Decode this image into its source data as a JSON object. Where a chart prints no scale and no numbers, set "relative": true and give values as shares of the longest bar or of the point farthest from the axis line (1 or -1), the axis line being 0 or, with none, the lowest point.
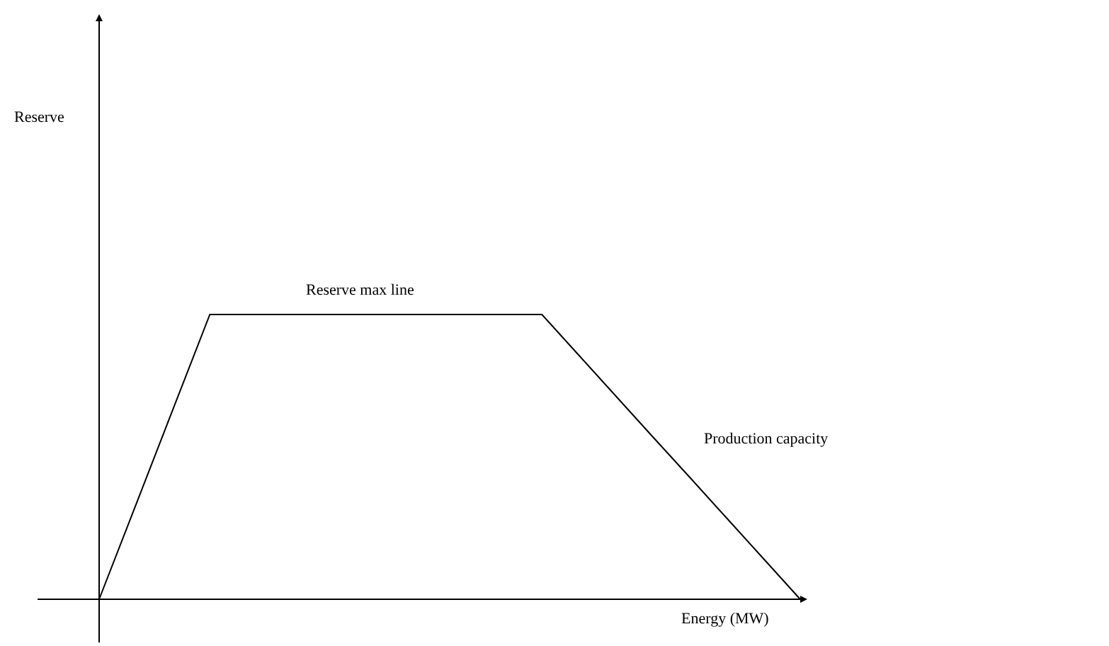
{
  "chart_data": {
    "type": "line",
    "relative": true,
    "xlabel": "Energy (MW)",
    "categories": [
      null,
      null,
      null,
      null,
      null,
      null,
      null,
      null,
      null,
      null,
      null,
      null,
      null,
      null,
      null,
      null,
      null,
      null,
      null,
      null
    ],
    "series": [
      {
        "color": "#000000",
        "values": [
          0,
          0.333,
          0.667,
          1,
          1,
          1,
          1,
          1,
          1,
          1,
          1,
          1,
          1,
          0.857,
          0.714,
          0.571,
          0.429,
          0.286,
          0.143,
          0
        ]
      }
    ],
    "annotations": [
      "Reserve",
      "Reserve max line",
      "Production capacity"
    ],
    "marker": "none",
    "line_style": "solid"
  }
}
